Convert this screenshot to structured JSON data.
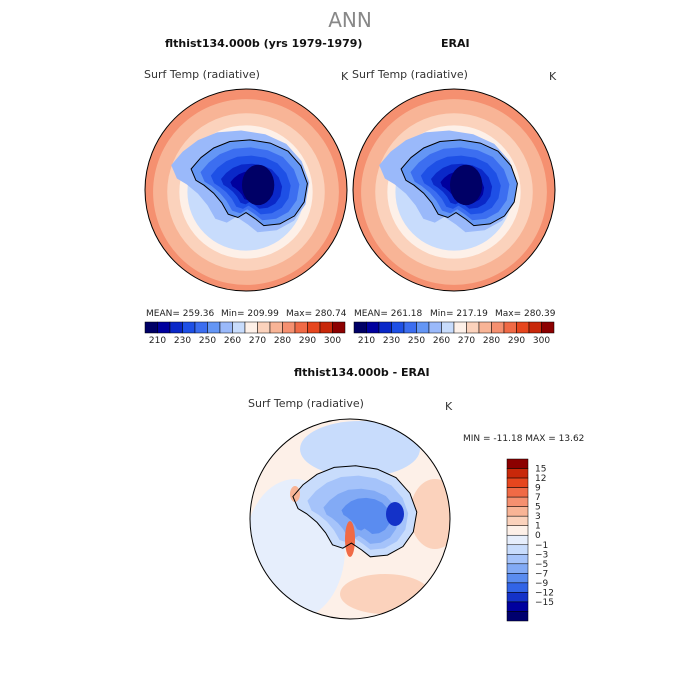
{
  "title": "ANN",
  "colors": {
    "abs_scale": [
      "#000066",
      "#00009e",
      "#0a28c8",
      "#1e50e6",
      "#3c6ef0",
      "#6496f5",
      "#9ab9fa",
      "#c8dcfc",
      "#fdf0e8",
      "#fbd2bc",
      "#f8b496",
      "#f59070",
      "#f06a46",
      "#e6461e",
      "#c8280a",
      "#8c0000"
    ],
    "diff_scale": [
      "#00006e",
      "#00009e",
      "#1432c8",
      "#3264e6",
      "#5a8cf0",
      "#82aaf5",
      "#a5c3fa",
      "#c8dcfc",
      "#e6eefc",
      "#fdf0e8",
      "#fbd2bc",
      "#f8b496",
      "#f59070",
      "#f06a46",
      "#e6461e",
      "#c8280a",
      "#8c0000"
    ]
  },
  "panels": [
    {
      "title": "flthist134.000b (yrs 1979-1979)",
      "var": "Surf Temp (radiative)",
      "units": "K",
      "mean": "MEAN= 259.36",
      "min": "Min= 209.99",
      "max": "Max= 280.74"
    },
    {
      "title": "ERAI",
      "var": "Surf Temp (radiative)",
      "units": "K",
      "mean": "MEAN= 261.18",
      "min": "Min= 217.19",
      "max": "Max= 280.39"
    }
  ],
  "diff": {
    "title": "flthist134.000b - ERAI",
    "var": "Surf Temp (radiative)",
    "units": "K",
    "minmax": "MIN = -11.18 MAX =  13.62"
  },
  "chart_data": [
    {
      "type": "heatmap",
      "title": "flthist134.000b (yrs 1979-1979)",
      "variable": "Surf Temp (radiative)",
      "units": "K",
      "projection": "south polar stereographic",
      "stats": {
        "mean": 259.36,
        "min": 209.99,
        "max": 280.74
      },
      "colorbar_ticks": [
        "210",
        "230",
        "250",
        "260",
        "270",
        "280",
        "290",
        "300"
      ]
    },
    {
      "type": "heatmap",
      "title": "ERAI",
      "variable": "Surf Temp (radiative)",
      "units": "K",
      "projection": "south polar stereographic",
      "stats": {
        "mean": 261.18,
        "min": 217.19,
        "max": 280.39
      },
      "colorbar_ticks": [
        "210",
        "230",
        "250",
        "260",
        "270",
        "280",
        "290",
        "300"
      ]
    },
    {
      "type": "heatmap",
      "title": "flthist134.000b - ERAI",
      "variable": "Surf Temp (radiative)",
      "units": "K",
      "projection": "south polar stereographic",
      "stats": {
        "min": -11.18,
        "max": 13.62
      },
      "colorbar_ticks": [
        "15",
        "12",
        "9",
        "7",
        "5",
        "3",
        "1",
        "0",
        "−1",
        "−3",
        "−5",
        "−7",
        "−9",
        "−12",
        "−15"
      ]
    }
  ]
}
